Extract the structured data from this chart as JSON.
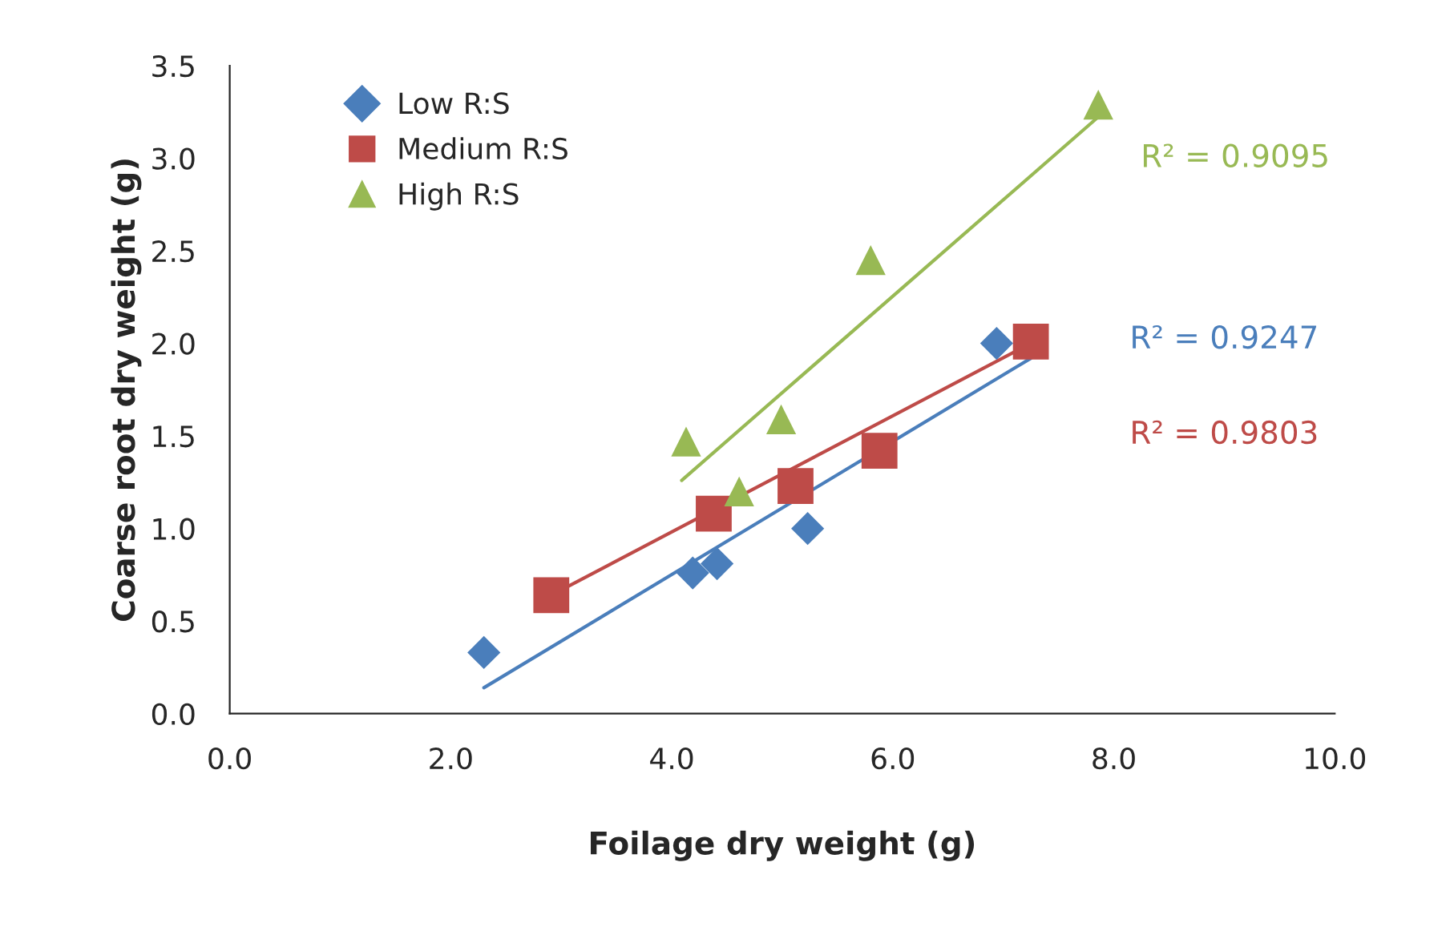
{
  "chart_data": {
    "type": "scatter",
    "xlabel": "Foilage dry weight (g)",
    "ylabel": "Coarse root dry weight (g)",
    "xlim": [
      0,
      10
    ],
    "ylim": [
      0,
      3.5
    ],
    "xticks": [
      {
        "value": 0,
        "label": "0.0"
      },
      {
        "value": 2,
        "label": "2.0"
      },
      {
        "value": 4,
        "label": "4.0"
      },
      {
        "value": 6,
        "label": "6.0"
      },
      {
        "value": 8,
        "label": "8.0"
      },
      {
        "value": 10,
        "label": "10.0"
      }
    ],
    "yticks": [
      {
        "value": 0,
        "label": "0.0"
      },
      {
        "value": 0.5,
        "label": "0.5"
      },
      {
        "value": 1,
        "label": "1.0"
      },
      {
        "value": 1.5,
        "label": "1.5"
      },
      {
        "value": 2,
        "label": "2.0"
      },
      {
        "value": 2.5,
        "label": "2.5"
      },
      {
        "value": 3,
        "label": "3.0"
      },
      {
        "value": 3.5,
        "label": "3.5"
      }
    ],
    "grid": false,
    "legend": "top left",
    "series": [
      {
        "name": "Low R:S",
        "marker": "diamond",
        "color": "#4a7ebb",
        "x": [
          2.3,
          4.19,
          4.41,
          5.23,
          6.94
        ],
        "values": [
          0.33,
          0.76,
          0.81,
          1.0,
          2.0
        ]
      },
      {
        "name": "Medium R:S",
        "marker": "square",
        "color": "#be4b48",
        "x": [
          2.91,
          4.38,
          5.12,
          5.88,
          7.25
        ],
        "values": [
          0.64,
          1.08,
          1.23,
          1.42,
          2.01
        ]
      },
      {
        "name": "High R:S",
        "marker": "triangle",
        "color": "#98b954",
        "x": [
          4.13,
          4.61,
          4.99,
          5.8,
          7.86
        ],
        "values": [
          1.47,
          1.2,
          1.59,
          2.45,
          3.29
        ]
      },
      {
        "type": "line",
        "marker": "none",
        "color": "#98b954",
        "x": [
          4.09,
          7.93
        ],
        "values": [
          1.26,
          3.26
        ]
      },
      {
        "type": "line",
        "marker": "none",
        "color": "#4a7ebb",
        "x": [
          2.3,
          7.25
        ],
        "values": [
          0.14,
          1.92
        ]
      },
      {
        "type": "line",
        "marker": "none",
        "color": "#be4b48",
        "x": [
          2.91,
          7.28
        ],
        "values": [
          0.64,
          2.01
        ]
      }
    ],
    "annotations": [
      "R² = 0.9095",
      "R² = 0.9247",
      "R² = 0.9803"
    ]
  }
}
